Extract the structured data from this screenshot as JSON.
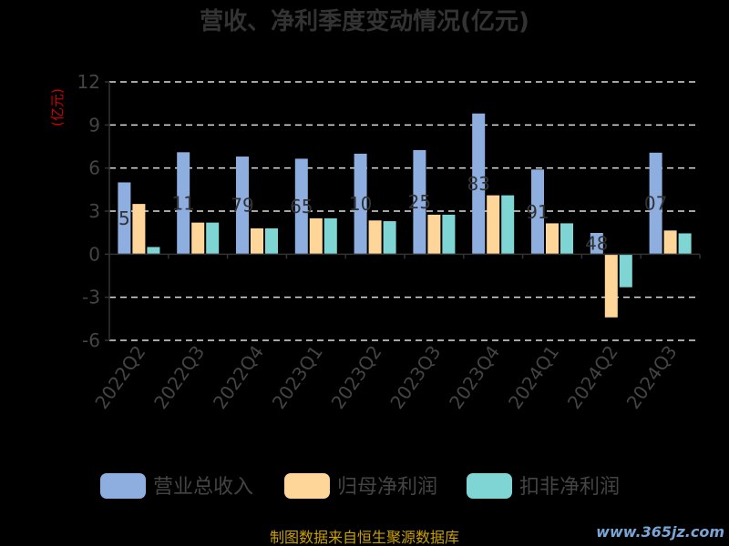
{
  "chart_data": {
    "type": "bar",
    "title": "营收、净利季度变动情况(亿元)",
    "ylabel": "(亿元)",
    "ylim": [
      -6,
      12
    ],
    "yticks": [
      -6,
      -3,
      0,
      3,
      6,
      9,
      12
    ],
    "grid": true,
    "legend_position": "bottom",
    "categories": [
      "2022Q2",
      "2022Q3",
      "2022Q4",
      "2023Q1",
      "2023Q2",
      "2023Q3",
      "2023Q4",
      "2024Q1",
      "2024Q2",
      "2024Q3"
    ],
    "series": [
      {
        "name": "营业总收入",
        "color": "#8eaee0",
        "values": [
          5.0,
          7.1,
          6.8,
          6.65,
          7.0,
          7.25,
          9.8,
          5.9,
          1.48,
          7.07
        ]
      },
      {
        "name": "归母净利润",
        "color": "#ffd699",
        "values": [
          3.5,
          2.2,
          1.8,
          2.5,
          2.35,
          2.75,
          4.1,
          2.15,
          -4.4,
          1.65
        ]
      },
      {
        "name": "扣非净利润",
        "color": "#7fd4d4",
        "values": [
          0.5,
          2.2,
          1.8,
          2.5,
          2.3,
          2.75,
          4.1,
          2.15,
          -2.3,
          1.45
        ]
      }
    ],
    "data_labels": [
      "5",
      "11",
      "79",
      "65",
      "10",
      "25",
      "83",
      "91",
      "48",
      "07"
    ]
  },
  "footer": {
    "source": "制图数据来自恒生聚源数据库",
    "watermark": "www.365jz.com"
  }
}
